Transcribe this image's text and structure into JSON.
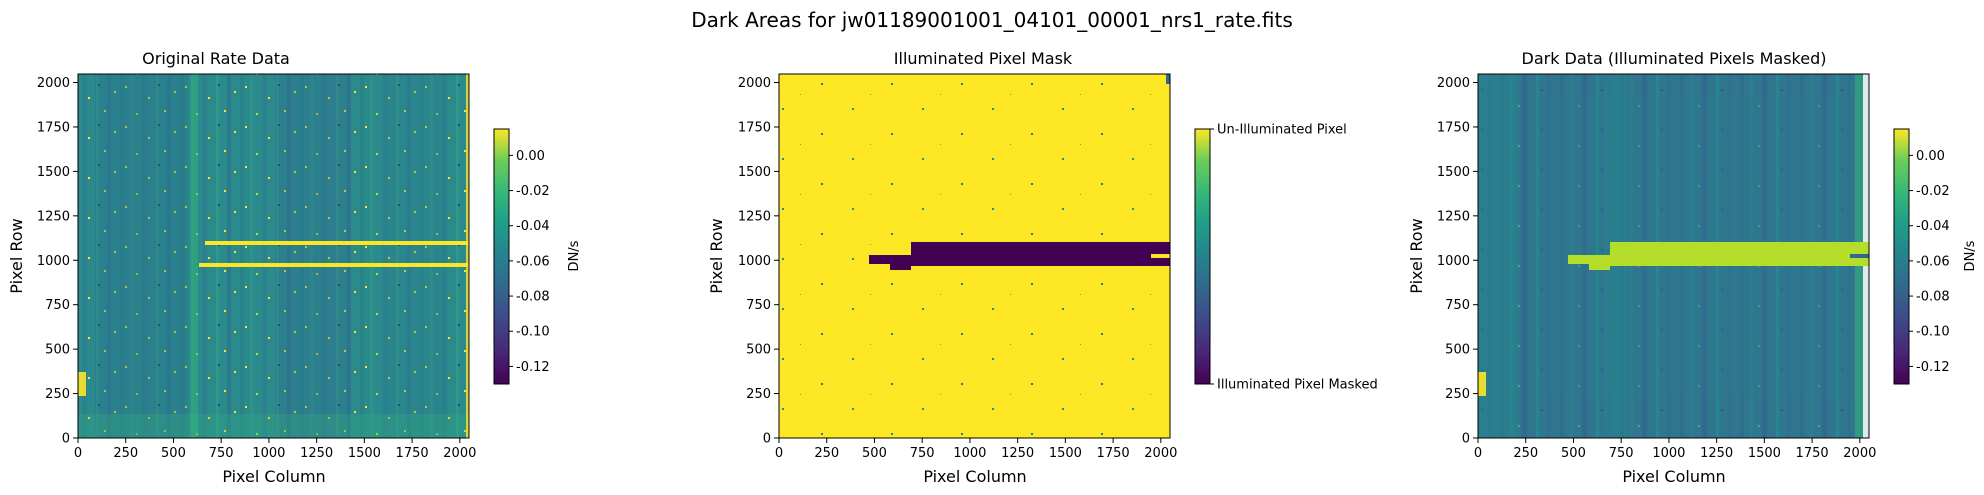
{
  "figure_title": "Dark Areas for jw01189001001_04101_00001_nrs1_rate.fits",
  "colors": {
    "viridis_dark": "#440154",
    "viridis_blue": "#31688e",
    "viridis_teal": "#21918c",
    "viridis_green": "#35b779",
    "viridis_yellow": "#fde725",
    "masked_band": "#b5de2b"
  },
  "chart_data": [
    {
      "type": "heatmap",
      "title": "Original Rate Data",
      "xlabel": "Pixel Column",
      "ylabel": "Pixel Row",
      "xlim": [
        0,
        2048
      ],
      "ylim": [
        0,
        2048
      ],
      "xticks": [
        0,
        250,
        500,
        750,
        1000,
        1250,
        1500,
        1750,
        2000
      ],
      "yticks": [
        0,
        250,
        500,
        750,
        1000,
        1250,
        1500,
        1750,
        2000
      ],
      "colorbar": {
        "label": "DN/s",
        "range": [
          -0.13,
          0.015
        ],
        "ticks": [
          "0.00",
          "-0.02",
          "-0.04",
          "-0.06",
          "-0.08",
          "-0.10",
          "-0.12"
        ]
      }
    },
    {
      "type": "heatmap",
      "title": "Illuminated Pixel Mask",
      "xlabel": "Pixel Column",
      "ylabel": "Pixel Row",
      "xlim": [
        0,
        2048
      ],
      "ylim": [
        0,
        2048
      ],
      "xticks": [
        0,
        250,
        500,
        750,
        1000,
        1250,
        1500,
        1750,
        2000
      ],
      "yticks": [
        0,
        250,
        500,
        750,
        1000,
        1250,
        1500,
        1750,
        2000
      ],
      "colorbar": {
        "label": "",
        "range": [
          0,
          1
        ],
        "ticks": [
          "Un-Illuminated Pixel",
          "Illuminated Pixel Masked"
        ]
      }
    },
    {
      "type": "heatmap",
      "title": "Dark Data (Illuminated Pixels Masked)",
      "xlabel": "Pixel Column",
      "ylabel": "Pixel Row",
      "xlim": [
        0,
        2048
      ],
      "ylim": [
        0,
        2048
      ],
      "xticks": [
        0,
        250,
        500,
        750,
        1000,
        1250,
        1500,
        1750,
        2000
      ],
      "yticks": [
        0,
        250,
        500,
        750,
        1000,
        1250,
        1500,
        1750,
        2000
      ],
      "colorbar": {
        "label": "DN/s",
        "range": [
          -0.13,
          0.015
        ],
        "ticks": [
          "0.00",
          "-0.02",
          "-0.04",
          "-0.06",
          "-0.08",
          "-0.10",
          "-0.12"
        ]
      }
    }
  ]
}
